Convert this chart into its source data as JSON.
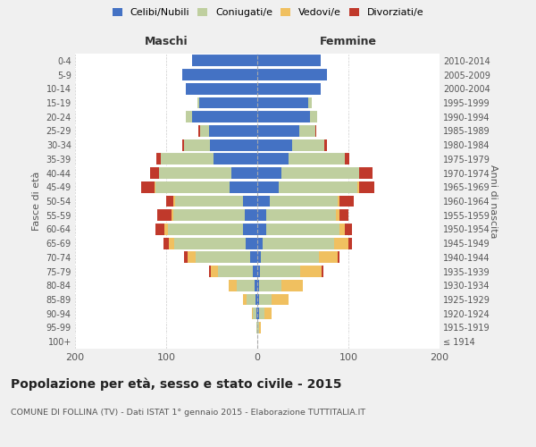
{
  "age_groups": [
    "100+",
    "95-99",
    "90-94",
    "85-89",
    "80-84",
    "75-79",
    "70-74",
    "65-69",
    "60-64",
    "55-59",
    "50-54",
    "45-49",
    "40-44",
    "35-39",
    "30-34",
    "25-29",
    "20-24",
    "15-19",
    "10-14",
    "5-9",
    "0-4"
  ],
  "birth_years": [
    "≤ 1914",
    "1915-1919",
    "1920-1924",
    "1925-1929",
    "1930-1934",
    "1935-1939",
    "1940-1944",
    "1945-1949",
    "1950-1954",
    "1955-1959",
    "1960-1964",
    "1965-1969",
    "1970-1974",
    "1975-1979",
    "1980-1984",
    "1985-1989",
    "1990-1994",
    "1995-1999",
    "2000-2004",
    "2005-2009",
    "2010-2014"
  ],
  "males": {
    "celibi": [
      0,
      0,
      1,
      2,
      3,
      5,
      8,
      13,
      16,
      14,
      16,
      30,
      28,
      48,
      52,
      53,
      72,
      64,
      78,
      82,
      72
    ],
    "coniugati": [
      0,
      1,
      4,
      10,
      20,
      38,
      60,
      78,
      82,
      78,
      74,
      82,
      80,
      58,
      28,
      10,
      6,
      2,
      0,
      0,
      0
    ],
    "vedovi": [
      0,
      0,
      1,
      4,
      8,
      8,
      8,
      6,
      4,
      2,
      2,
      1,
      0,
      0,
      0,
      0,
      0,
      0,
      0,
      0,
      0
    ],
    "divorziati": [
      0,
      0,
      0,
      0,
      0,
      2,
      4,
      6,
      10,
      16,
      8,
      14,
      10,
      5,
      2,
      2,
      0,
      0,
      0,
      0,
      0
    ]
  },
  "females": {
    "nubili": [
      0,
      0,
      2,
      2,
      2,
      3,
      4,
      6,
      10,
      10,
      14,
      24,
      26,
      34,
      38,
      46,
      58,
      56,
      70,
      76,
      70
    ],
    "coniugate": [
      0,
      2,
      6,
      14,
      24,
      44,
      64,
      78,
      80,
      76,
      74,
      86,
      86,
      62,
      36,
      18,
      8,
      4,
      0,
      0,
      0
    ],
    "vedove": [
      0,
      2,
      8,
      18,
      24,
      24,
      20,
      16,
      6,
      4,
      2,
      2,
      0,
      0,
      0,
      0,
      0,
      0,
      0,
      0,
      0
    ],
    "divorziate": [
      0,
      0,
      0,
      0,
      0,
      2,
      2,
      4,
      8,
      10,
      16,
      16,
      14,
      5,
      2,
      1,
      0,
      0,
      0,
      0,
      0
    ]
  },
  "colors": {
    "celibi": "#4472C4",
    "coniugati": "#BFCF9F",
    "vedovi": "#F0C060",
    "divorziati": "#C0392B"
  },
  "legend_labels": [
    "Celibi/Nubili",
    "Coniugati/e",
    "Vedovi/e",
    "Divorziati/e"
  ],
  "title": "Popolazione per età, sesso e stato civile - 2015",
  "subtitle": "COMUNE DI FOLLINA (TV) - Dati ISTAT 1° gennaio 2015 - Elaborazione TUTTITALIA.IT",
  "xlabel_left": "Maschi",
  "xlabel_right": "Femmine",
  "ylabel_left": "Fasce di età",
  "ylabel_right": "Anni di nascita",
  "xlim": 200,
  "background_color": "#f0f0f0",
  "plot_bg_color": "#ffffff"
}
